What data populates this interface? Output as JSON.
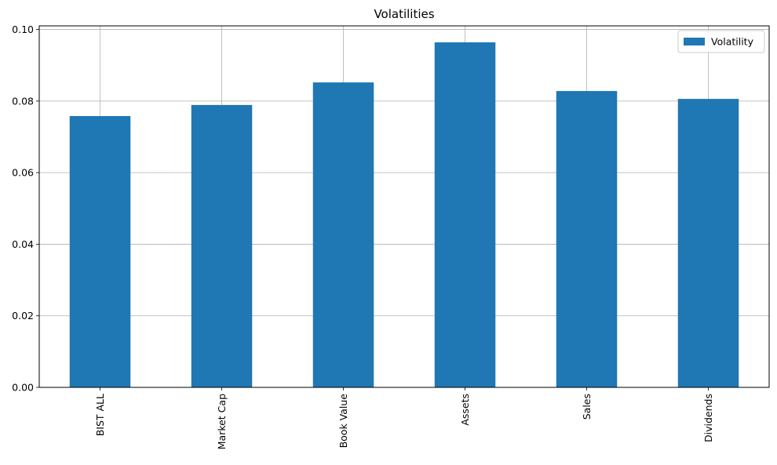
{
  "chart_data": {
    "type": "bar",
    "title": "Volatilities",
    "xlabel": "",
    "ylabel": "",
    "categories": [
      "BIST ALL",
      "Market Cap",
      "Book Value",
      "Assets",
      "Sales",
      "Dividends"
    ],
    "series": [
      {
        "name": "Volatility",
        "values": [
          0.0758,
          0.0789,
          0.0852,
          0.0964,
          0.0828,
          0.0806
        ]
      }
    ],
    "ylim": [
      0,
      0.101
    ],
    "yticks": [
      0.0,
      0.02,
      0.04,
      0.06,
      0.08,
      0.1
    ],
    "ytick_labels": [
      "0.00",
      "0.02",
      "0.04",
      "0.06",
      "0.08",
      "0.10"
    ],
    "grid": true,
    "legend_position": "top-right",
    "colors": {
      "bar": "#1f77b4",
      "grid": "#b0b0b0",
      "axis": "#000000"
    }
  }
}
